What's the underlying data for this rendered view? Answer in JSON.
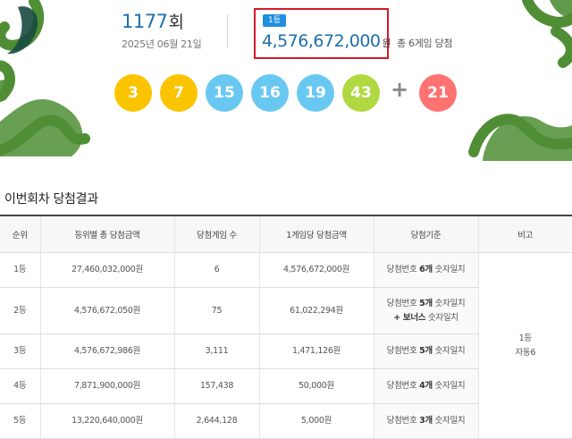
{
  "round": {
    "number": "1177",
    "suffix": "회",
    "date": "2025년 06월 21일"
  },
  "first_prize": {
    "badge": "1등",
    "amount": "4,576,672,000",
    "unit": "원",
    "winners_text": "총 6게임 당첨"
  },
  "numbers": [
    {
      "value": "3",
      "color": "#fbc400"
    },
    {
      "value": "7",
      "color": "#fbc400"
    },
    {
      "value": "15",
      "color": "#69c8f2"
    },
    {
      "value": "16",
      "color": "#69c8f2"
    },
    {
      "value": "19",
      "color": "#69c8f2"
    },
    {
      "value": "43",
      "color": "#b0d840"
    }
  ],
  "plus_sign": "+",
  "bonus": {
    "value": "21",
    "color": "#ff7272"
  },
  "decoration_color": "#4f8e35",
  "section_title": "이번회차 당첨결과",
  "table": {
    "headers": [
      "순위",
      "등위별 총 당첨금액",
      "당첨게임 수",
      "1게임당 당첨금액",
      "당첨기준",
      "비고"
    ],
    "rows": [
      {
        "rank": "1등",
        "total": "27,460,032,000원",
        "games": "6",
        "per_game": "4,576,672,000원",
        "criteria_pre": "당첨번호 ",
        "criteria_bold": "6개",
        "criteria_post": " 숫자일치",
        "criteria2_bold": "",
        "criteria2_post": ""
      },
      {
        "rank": "2등",
        "total": "4,576,672,050원",
        "games": "75",
        "per_game": "61,022,294원",
        "criteria_pre": "당첨번호 ",
        "criteria_bold": "5개",
        "criteria_post": " 숫자일치",
        "criteria2_bold": "+ 보너스",
        "criteria2_post": " 숫자일치"
      },
      {
        "rank": "3등",
        "total": "4,576,672,986원",
        "games": "3,111",
        "per_game": "1,471,126원",
        "criteria_pre": "당첨번호 ",
        "criteria_bold": "5개",
        "criteria_post": " 숫자일치",
        "criteria2_bold": "",
        "criteria2_post": ""
      },
      {
        "rank": "4등",
        "total": "7,871,900,000원",
        "games": "157,438",
        "per_game": "50,000원",
        "criteria_pre": "당첨번호 ",
        "criteria_bold": "4개",
        "criteria_post": " 숫자일치",
        "criteria2_bold": "",
        "criteria2_post": ""
      },
      {
        "rank": "5등",
        "total": "13,220,640,000원",
        "games": "2,644,128",
        "per_game": "5,000원",
        "criteria_pre": "당첨번호 ",
        "criteria_bold": "3개",
        "criteria_post": " 숫자일치",
        "criteria2_bold": "",
        "criteria2_post": ""
      }
    ],
    "note_line1": "1등",
    "note_line2": "자동6"
  }
}
